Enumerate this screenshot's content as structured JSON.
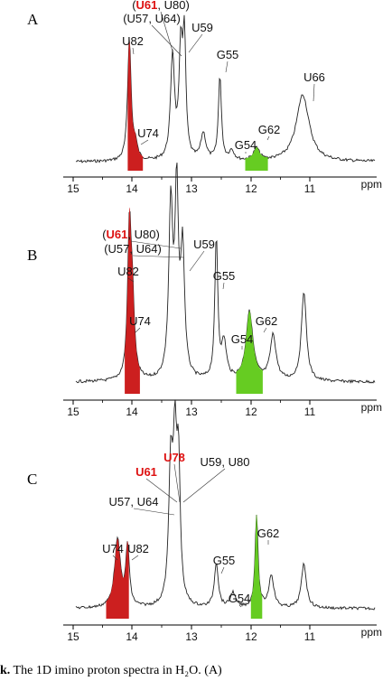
{
  "caption": {
    "lead": "k.",
    "text": "The 1D imino proton spectra in H₂O. (A)"
  },
  "colors": {
    "red_fill": "#cc1f1f",
    "green_fill": "#66cc22",
    "red_text": "#dd1111",
    "trace": "#222222"
  },
  "chart_data": [
    {
      "panel": "A",
      "type": "line",
      "xlabel": "ppm",
      "xlim": [
        15,
        10.5
      ],
      "x_reversed": true,
      "ticks": [
        15,
        14,
        13,
        12,
        11
      ],
      "baseline": 0.05,
      "peaks": [
        {
          "ppm": 14.05,
          "h": 1.0,
          "w": 0.035
        },
        {
          "ppm": 13.95,
          "h": 0.12,
          "w": 0.04
        },
        {
          "ppm": 13.32,
          "h": 0.85,
          "w": 0.04
        },
        {
          "ppm": 13.18,
          "h": 0.87,
          "w": 0.035
        },
        {
          "ppm": 13.12,
          "h": 0.93,
          "w": 0.03
        },
        {
          "ppm": 12.8,
          "h": 0.22,
          "w": 0.05
        },
        {
          "ppm": 12.52,
          "h": 0.7,
          "w": 0.03
        },
        {
          "ppm": 12.32,
          "h": 0.08,
          "w": 0.05
        },
        {
          "ppm": 11.9,
          "h": 0.1,
          "w": 0.06
        },
        {
          "ppm": 11.12,
          "h": 0.55,
          "w": 0.13
        }
      ],
      "fills": [
        {
          "ppm": 13.95,
          "h": 0.12,
          "w": 0.04,
          "color": "red"
        },
        {
          "ppm": 11.9,
          "h": 0.1,
          "w": 0.06,
          "color": "green"
        }
      ],
      "labels": [
        {
          "parts": [
            {
              "t": "(",
              "c": "black"
            },
            {
              "t": "U61",
              "c": "red"
            },
            {
              "t": ", U80)",
              "c": "black"
            }
          ]
        },
        {
          "parts": [
            {
              "t": "(U57, U64)",
              "c": "black"
            }
          ]
        },
        {
          "parts": [
            {
              "t": "U82",
              "c": "black"
            }
          ]
        },
        {
          "parts": [
            {
              "t": "U59",
              "c": "black"
            }
          ]
        },
        {
          "parts": [
            {
              "t": "G55",
              "c": "black"
            }
          ]
        },
        {
          "parts": [
            {
              "t": "U66",
              "c": "black"
            }
          ]
        },
        {
          "parts": [
            {
              "t": "U74",
              "c": "black"
            }
          ]
        },
        {
          "parts": [
            {
              "t": "G62",
              "c": "black"
            }
          ]
        },
        {
          "parts": [
            {
              "t": "G54",
              "c": "black"
            }
          ]
        }
      ]
    },
    {
      "panel": "B",
      "type": "line",
      "xlabel": "ppm",
      "xlim": [
        15,
        10.5
      ],
      "x_reversed": true,
      "ticks": [
        15,
        14,
        13,
        12,
        11
      ],
      "baseline": 0.05,
      "peaks": [
        {
          "ppm": 14.05,
          "h": 0.8,
          "w": 0.035
        },
        {
          "ppm": 14.0,
          "h": 0.4,
          "w": 0.04
        },
        {
          "ppm": 13.35,
          "h": 0.95,
          "w": 0.04
        },
        {
          "ppm": 13.25,
          "h": 1.0,
          "w": 0.035
        },
        {
          "ppm": 13.15,
          "h": 0.7,
          "w": 0.04
        },
        {
          "ppm": 12.58,
          "h": 0.78,
          "w": 0.03
        },
        {
          "ppm": 12.45,
          "h": 0.2,
          "w": 0.05
        },
        {
          "ppm": 12.02,
          "h": 0.38,
          "w": 0.07
        },
        {
          "ppm": 11.62,
          "h": 0.25,
          "w": 0.06
        },
        {
          "ppm": 11.1,
          "h": 0.5,
          "w": 0.05
        }
      ],
      "fills": [
        {
          "ppm": 14.0,
          "h": 0.4,
          "w": 0.04,
          "color": "red"
        },
        {
          "ppm": 12.02,
          "h": 0.38,
          "w": 0.07,
          "color": "green"
        }
      ],
      "labels": [
        {
          "parts": [
            {
              "t": "(",
              "c": "black"
            },
            {
              "t": "U61",
              "c": "red"
            },
            {
              "t": ", U80)",
              "c": "black"
            }
          ]
        },
        {
          "parts": [
            {
              "t": "(U57, U64)",
              "c": "black"
            }
          ]
        },
        {
          "parts": [
            {
              "t": "U59",
              "c": "black"
            }
          ]
        },
        {
          "parts": [
            {
              "t": "U82",
              "c": "black"
            }
          ]
        },
        {
          "parts": [
            {
              "t": "G55",
              "c": "black"
            }
          ]
        },
        {
          "parts": [
            {
              "t": "U74",
              "c": "black"
            }
          ]
        },
        {
          "parts": [
            {
              "t": "G62",
              "c": "black"
            }
          ]
        },
        {
          "parts": [
            {
              "t": "G54",
              "c": "black"
            }
          ]
        }
      ]
    },
    {
      "panel": "C",
      "type": "line",
      "xlabel": "ppm",
      "xlim": [
        15,
        10.5
      ],
      "x_reversed": true,
      "ticks": [
        15,
        14,
        13,
        12,
        11
      ],
      "baseline": 0.05,
      "peaks": [
        {
          "ppm": 14.25,
          "h": 0.45,
          "w": 0.06
        },
        {
          "ppm": 14.08,
          "h": 0.4,
          "w": 0.035
        },
        {
          "ppm": 13.35,
          "h": 0.92,
          "w": 0.04
        },
        {
          "ppm": 13.28,
          "h": 0.95,
          "w": 0.035
        },
        {
          "ppm": 13.22,
          "h": 0.9,
          "w": 0.035
        },
        {
          "ppm": 12.58,
          "h": 0.3,
          "w": 0.04
        },
        {
          "ppm": 12.3,
          "h": 0.1,
          "w": 0.05
        },
        {
          "ppm": 11.9,
          "h": 0.62,
          "w": 0.03
        },
        {
          "ppm": 11.65,
          "h": 0.22,
          "w": 0.05
        },
        {
          "ppm": 11.1,
          "h": 0.3,
          "w": 0.05
        }
      ],
      "fills": [
        {
          "ppm": 14.25,
          "h": 0.45,
          "w": 0.06,
          "color": "red"
        },
        {
          "ppm": 11.9,
          "h": 0.62,
          "w": 0.03,
          "color": "green"
        }
      ],
      "labels": [
        {
          "parts": [
            {
              "t": "U61",
              "c": "red",
              "b": true
            }
          ]
        },
        {
          "parts": [
            {
              "t": "U78",
              "c": "red",
              "b": true
            }
          ]
        },
        {
          "parts": [
            {
              "t": "U59, U80",
              "c": "black"
            }
          ]
        },
        {
          "parts": [
            {
              "t": "U57, U64",
              "c": "black"
            }
          ]
        },
        {
          "parts": [
            {
              "t": "U74",
              "c": "black"
            }
          ]
        },
        {
          "parts": [
            {
              "t": "U82",
              "c": "black"
            }
          ]
        },
        {
          "parts": [
            {
              "t": "G55",
              "c": "black"
            }
          ]
        },
        {
          "parts": [
            {
              "t": "G62",
              "c": "black"
            }
          ]
        },
        {
          "parts": [
            {
              "t": "G54",
              "c": "black"
            }
          ]
        }
      ]
    }
  ]
}
